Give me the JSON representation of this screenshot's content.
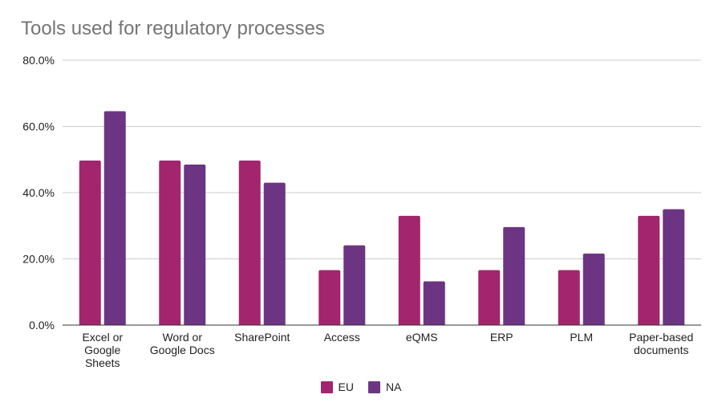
{
  "chart_data": {
    "type": "bar",
    "title": "Tools used for regulatory processes",
    "categories": [
      [
        "Excel or",
        "Google",
        "Sheets"
      ],
      [
        "Word or",
        "Google Docs"
      ],
      [
        "SharePoint"
      ],
      [
        "Access"
      ],
      [
        "eQMS"
      ],
      [
        "ERP"
      ],
      [
        "PLM"
      ],
      [
        "Paper-based",
        "documents"
      ]
    ],
    "series": [
      {
        "name": "EU",
        "color": "#A2256E",
        "values": [
          49.7,
          49.7,
          49.7,
          16.6,
          33.0,
          16.6,
          16.6,
          33.0
        ]
      },
      {
        "name": "NA",
        "color": "#6C3483",
        "values": [
          64.6,
          48.5,
          43.0,
          24.1,
          13.2,
          29.6,
          21.6,
          35.0
        ]
      }
    ],
    "ylim": [
      0,
      80
    ],
    "yticks": [
      "0.0%",
      "20.0%",
      "40.0%",
      "60.0%",
      "80.0%"
    ],
    "ytick_values": [
      0,
      20,
      40,
      60,
      80
    ],
    "grid": true,
    "legend_position": "bottom"
  }
}
